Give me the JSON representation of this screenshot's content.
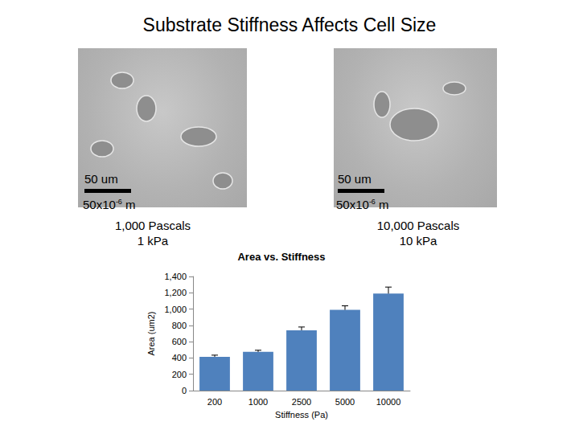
{
  "title": "Substrate Stiffness Affects Cell Size",
  "images": [
    {
      "scale_bar": "50 um",
      "scale_bar_m": {
        "mantissa": "50x10",
        "exponent": "-6",
        "unit": "m"
      },
      "label": [
        "1,000 Pascals",
        "1 kPa"
      ]
    },
    {
      "scale_bar": "50 um",
      "scale_bar_m": {
        "mantissa": "50x10",
        "exponent": "-6",
        "unit": "m"
      },
      "label": [
        "10,000 Pascals",
        "10 kPa"
      ]
    }
  ],
  "chart_data": {
    "type": "bar",
    "title": "Area vs. Stiffness",
    "x_label": "Stiffness (Pa)",
    "y_label": "Area (um2)",
    "categories": [
      "200",
      "1000",
      "2500",
      "5000",
      "10000"
    ],
    "values": [
      415,
      475,
      740,
      990,
      1190
    ],
    "errors": [
      20,
      20,
      40,
      50,
      80
    ],
    "color": "#4f81bd",
    "ylim": [
      0,
      1400
    ],
    "yticks": [
      0,
      200,
      400,
      600,
      800,
      1000,
      1200,
      1400
    ],
    "grid": false
  }
}
